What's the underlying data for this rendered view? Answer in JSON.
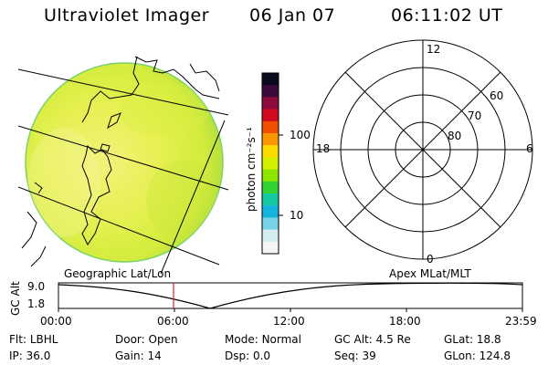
{
  "header": {
    "instrument": "Ultraviolet Imager",
    "date": "06 Jan 07",
    "time": "06:11:02 UT"
  },
  "colorbar": {
    "unit_label": "photon cm⁻²s⁻¹",
    "ticks": [
      "100",
      "10"
    ],
    "colors": [
      "#0a0a1e",
      "#3c0a3c",
      "#8c0a3c",
      "#d20a1e",
      "#f05000",
      "#fa9600",
      "#fadc00",
      "#d2f000",
      "#8ce600",
      "#32d232",
      "#14c8a0",
      "#14b4dc",
      "#78d2e6",
      "#d2ecf0",
      "#f5f5f5"
    ]
  },
  "image_panel": {
    "label": "Geographic Lat/Lon"
  },
  "polar_panel": {
    "label": "Apex MLat/MLT",
    "mlt_labels": {
      "top": "12",
      "left": "18",
      "right": "6",
      "bottom": "0"
    },
    "mlat_labels": [
      "60",
      "70",
      "80"
    ]
  },
  "altitude_plot": {
    "ylabel": "GC Alt",
    "yticks": [
      "9.0",
      "1.8"
    ],
    "xticks": [
      "00:00",
      "06:00",
      "12:00",
      "18:00",
      "23:59"
    ],
    "marker_time": "06:11"
  },
  "status": {
    "row1": [
      {
        "name": "Flt:",
        "value": "LBHL"
      },
      {
        "name": "Door:",
        "value": "Open"
      },
      {
        "name": "Mode:",
        "value": "Normal"
      },
      {
        "name": "GC Alt:",
        "value": "4.5 Re"
      },
      {
        "name": "GLat:",
        "value": "18.8"
      }
    ],
    "row2": [
      {
        "name": "IP:",
        "value": "36.0"
      },
      {
        "name": "Gain:",
        "value": "14"
      },
      {
        "name": "Dsp:",
        "value": "0.0"
      },
      {
        "name": "Seq:",
        "value": "39"
      },
      {
        "name": "GLon:",
        "value": "124.8"
      }
    ]
  }
}
